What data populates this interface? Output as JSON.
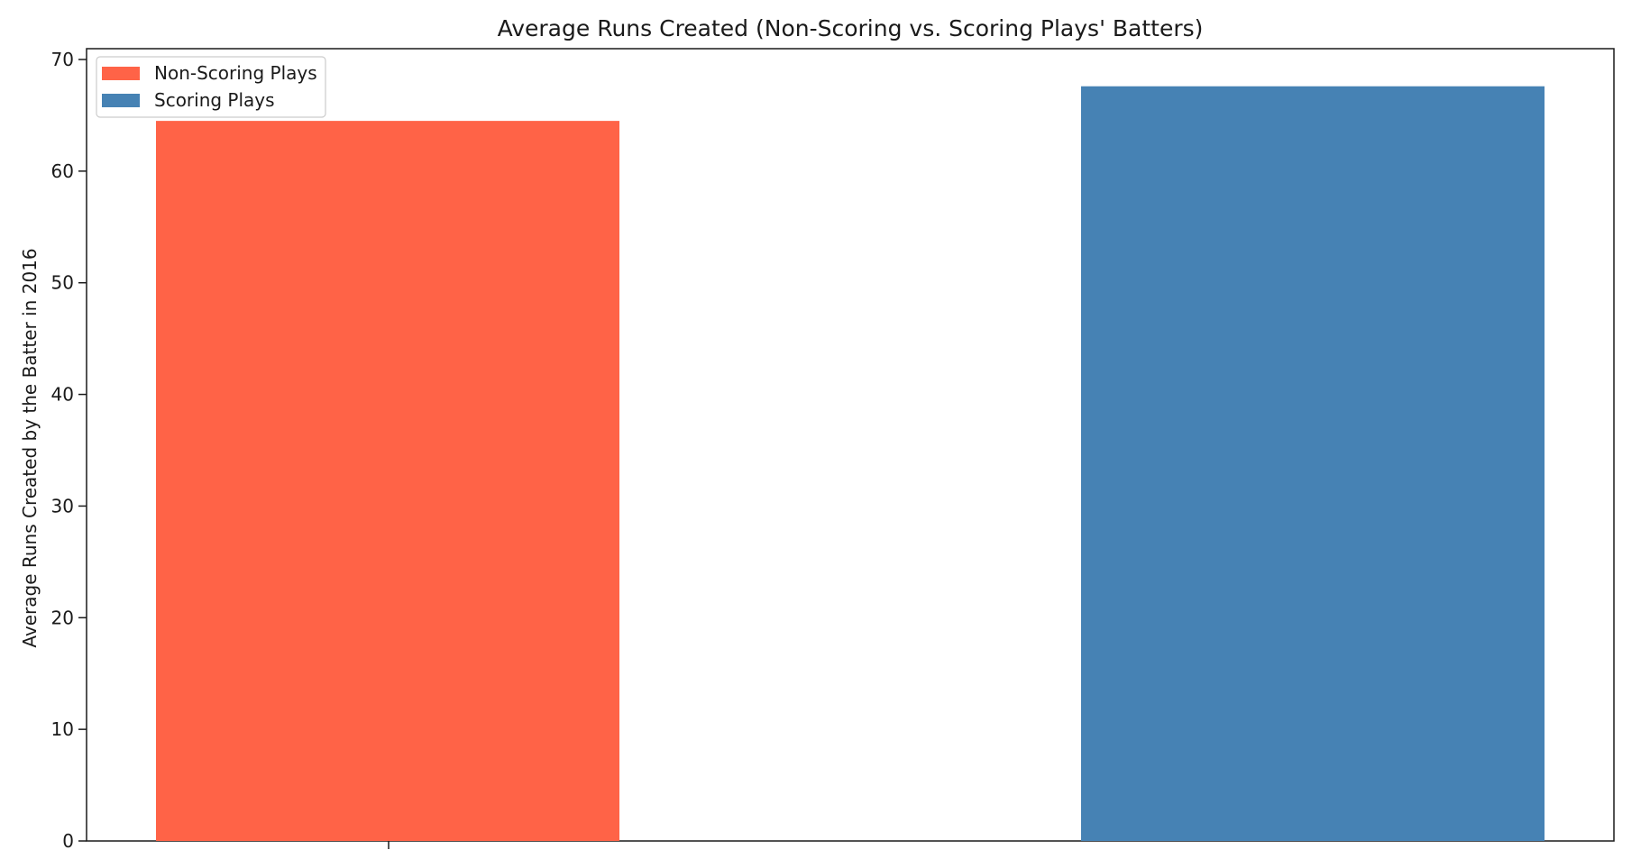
{
  "chart_data": {
    "type": "bar",
    "title": "Average Runs Created (Non-Scoring vs. Scoring Plays' Batters)",
    "xlabel": "",
    "ylabel": "Average Runs Created by the Batter in 2016",
    "ylim": [
      0,
      70
    ],
    "yticks": [
      0,
      10,
      20,
      30,
      40,
      50,
      60,
      70
    ],
    "grid": false,
    "legend_position": "top-left",
    "series": [
      {
        "name": "Non-Scoring Plays",
        "value": 64.5,
        "color": "#FF6347"
      },
      {
        "name": "Scoring Plays",
        "value": 67.6,
        "color": "#4682B4"
      }
    ]
  }
}
